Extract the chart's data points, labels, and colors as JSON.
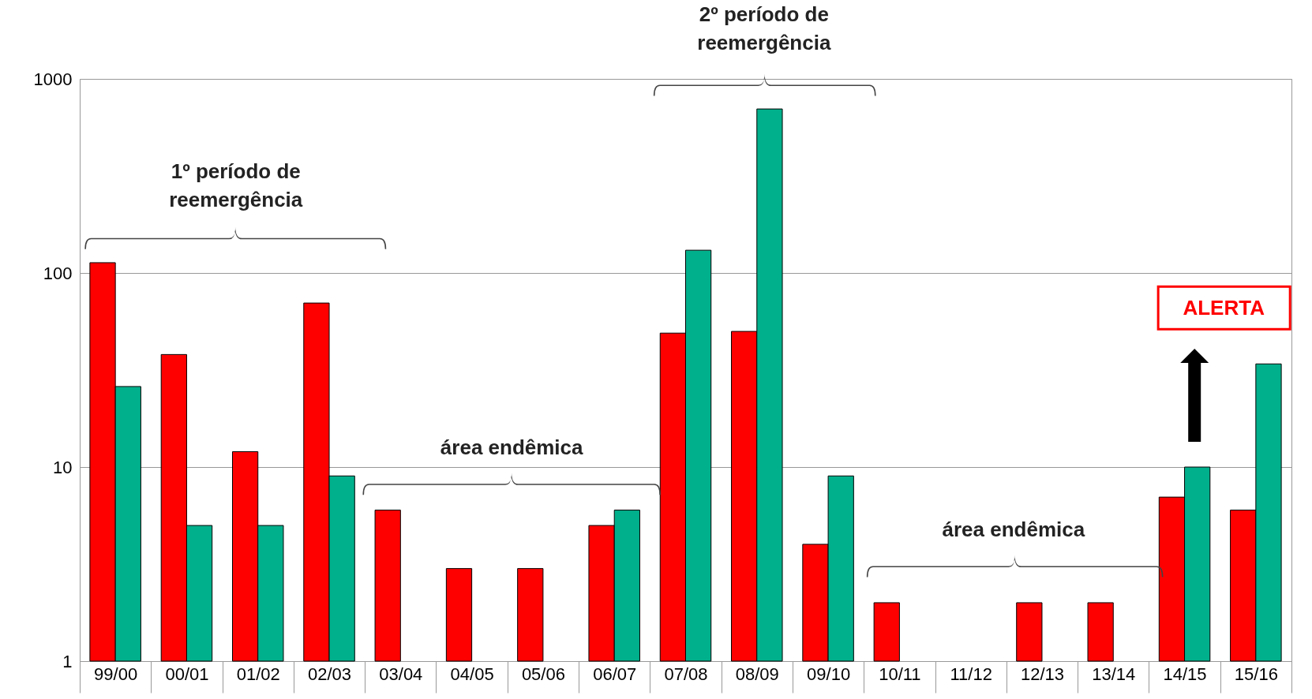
{
  "chart_data": {
    "type": "bar",
    "categories": [
      "99/00",
      "00/01",
      "01/02",
      "02/03",
      "03/04",
      "04/05",
      "05/06",
      "06/07",
      "07/08",
      "08/09",
      "09/10",
      "10/11",
      "11/12",
      "12/13",
      "13/14",
      "14/15",
      "15/16"
    ],
    "series": [
      {
        "color": "#ff0000",
        "values": [
          113,
          38,
          12,
          70,
          6,
          3,
          3,
          5,
          49,
          50,
          4,
          2,
          null,
          2,
          2,
          7,
          6
        ]
      },
      {
        "color": "#00b08c",
        "values": [
          26,
          5,
          5,
          9,
          null,
          null,
          null,
          6,
          131,
          700,
          9,
          null,
          null,
          null,
          null,
          10,
          34
        ]
      }
    ],
    "log": true,
    "ylim": [
      1,
      1000
    ],
    "yticks": [
      1,
      10,
      100,
      1000
    ],
    "grid": "y",
    "legend": false,
    "annotations": [
      "1º período de reemergência",
      "2º período de reemergência",
      "área endêmica",
      "área endêmica",
      "ALERTA"
    ]
  }
}
